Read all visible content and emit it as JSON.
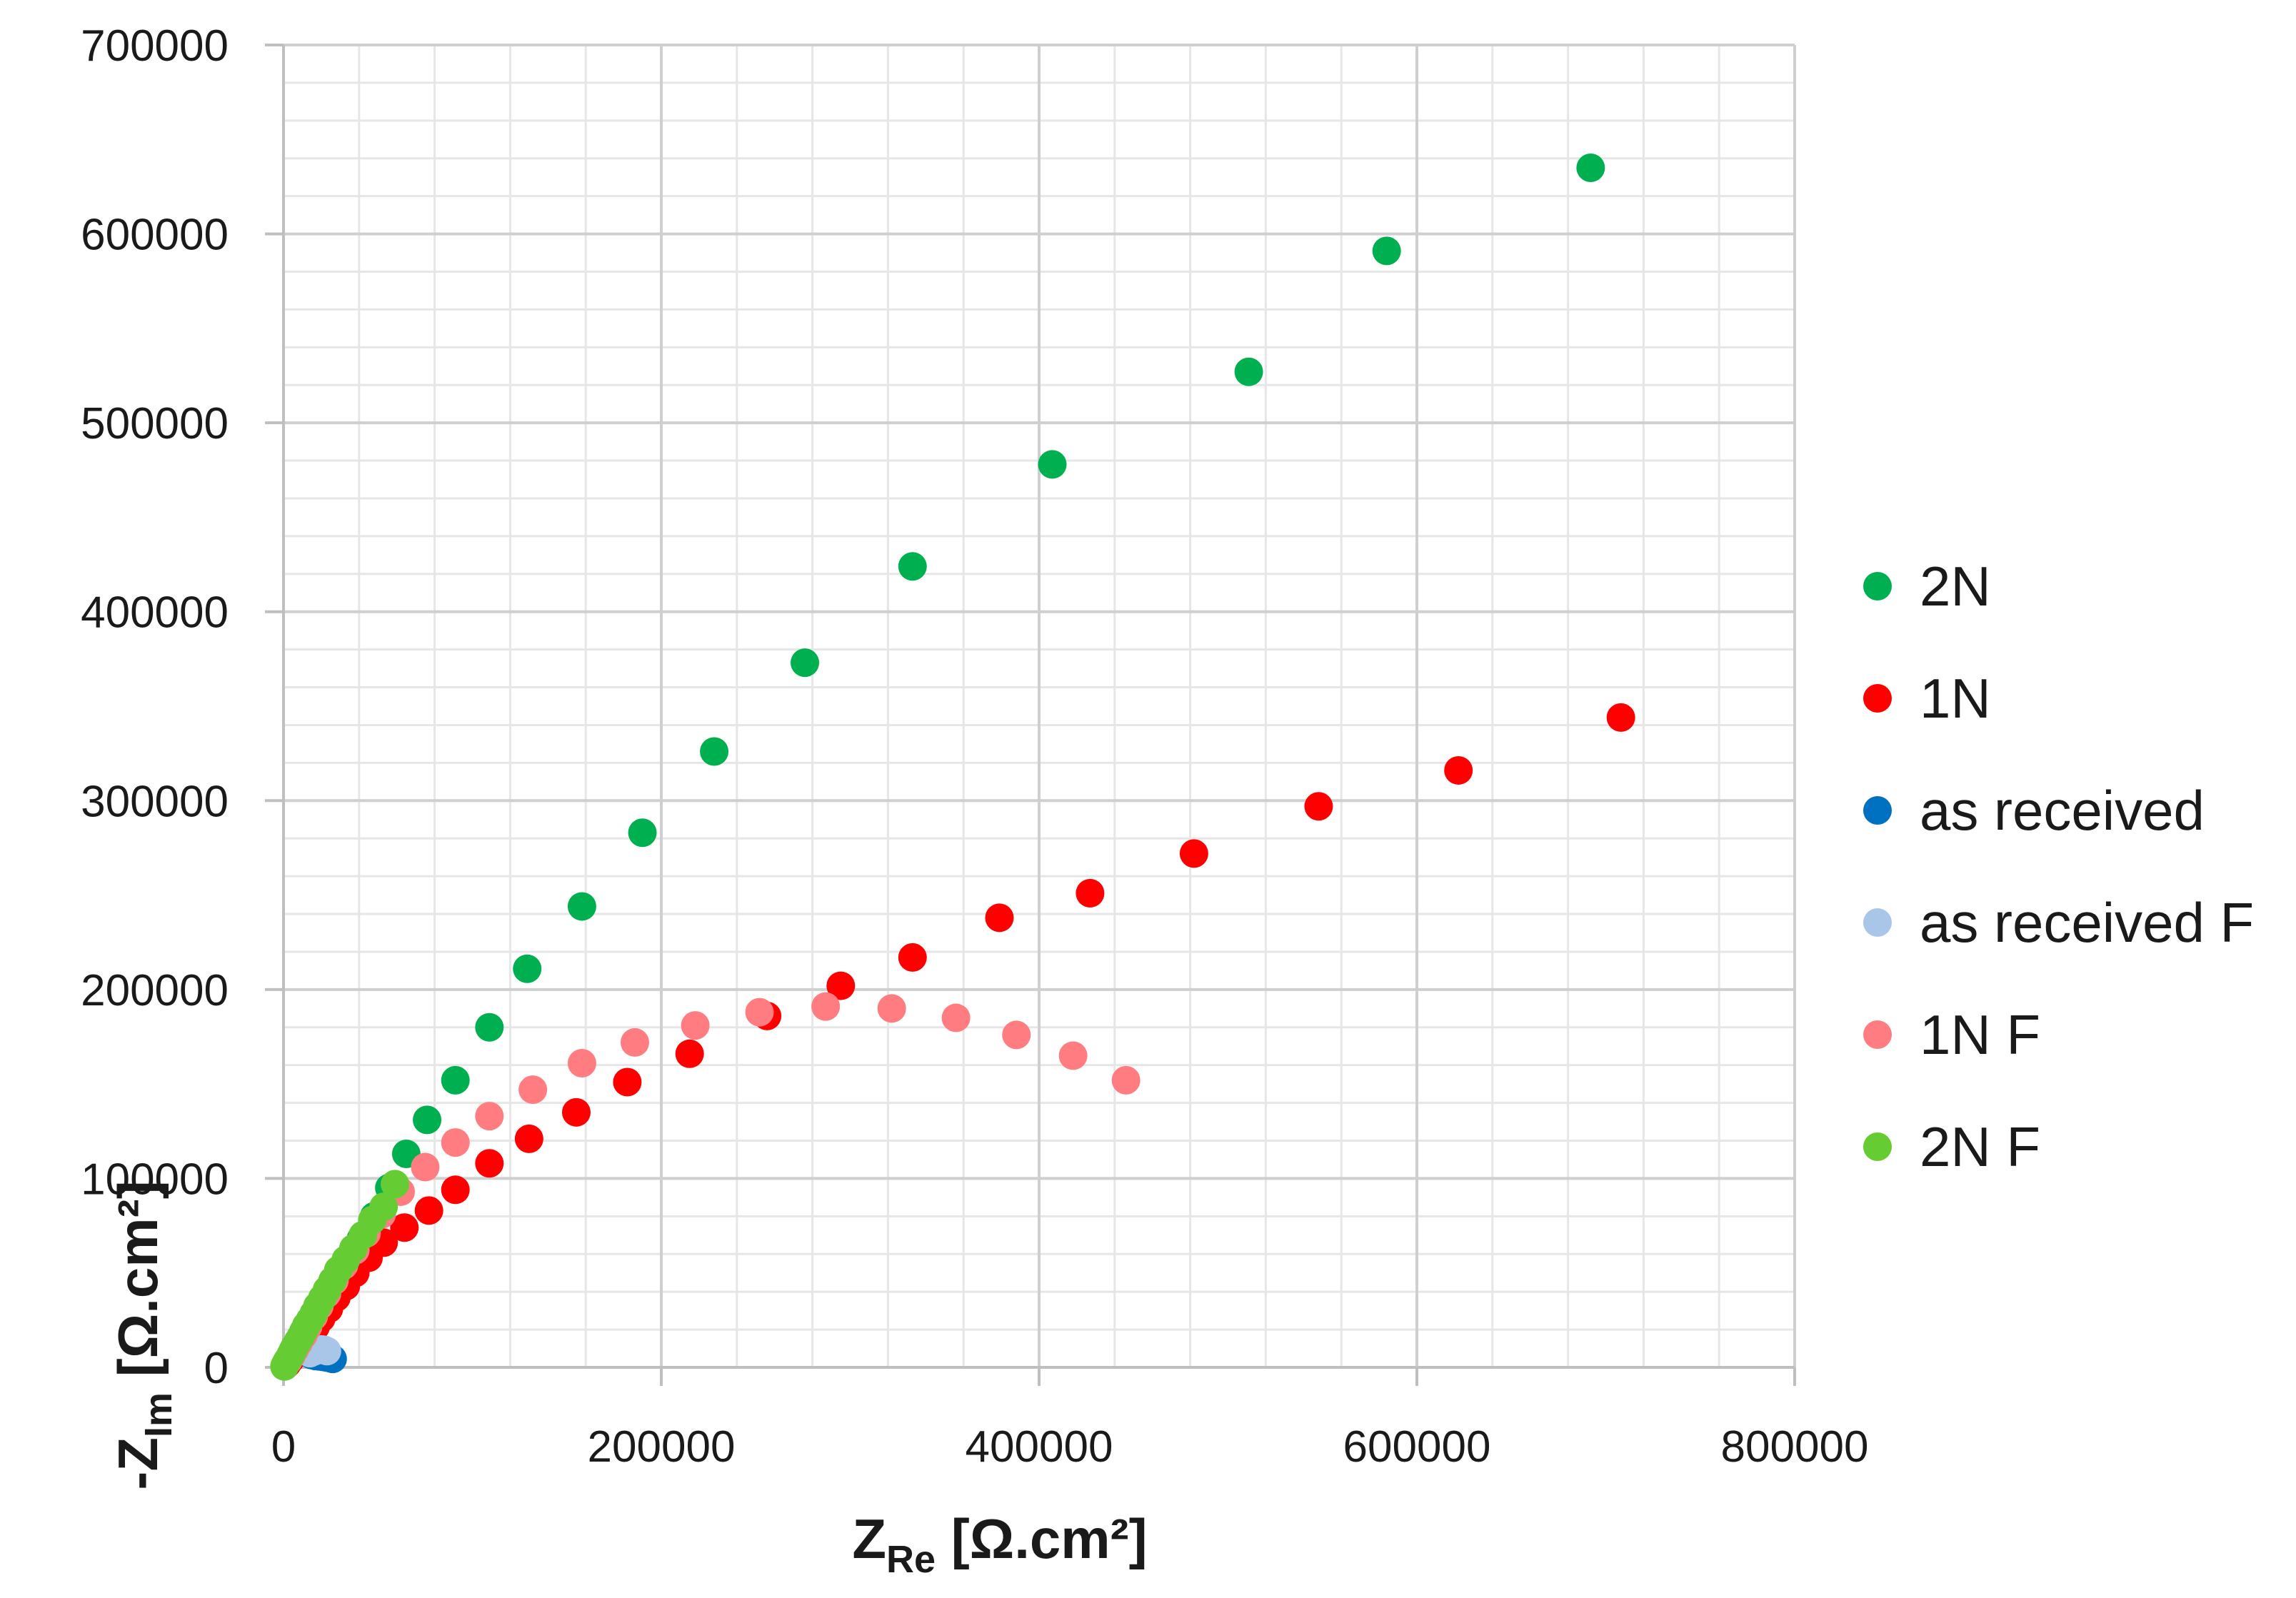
{
  "chart_data": {
    "type": "scatter",
    "title": "",
    "xlabel": {
      "main": "Z",
      "sub": "Re",
      "unit": " [Ω.cm²]"
    },
    "ylabel": {
      "main": "-Z",
      "sub": "Im",
      "unit": " [Ω.cm²]"
    },
    "xlim": [
      0,
      800000
    ],
    "ylim": [
      0,
      700000
    ],
    "x_ticks": [
      0,
      200000,
      400000,
      600000,
      800000
    ],
    "y_ticks": [
      0,
      100000,
      200000,
      300000,
      400000,
      500000,
      600000,
      700000
    ],
    "x_tick_labels": [
      "0",
      "200000",
      "400000",
      "600000",
      "800000"
    ],
    "y_tick_labels": [
      "0",
      "100000",
      "200000",
      "300000",
      "400000",
      "500000",
      "600000",
      "700000"
    ],
    "grid": {
      "major": true,
      "minor": true
    },
    "legend": {
      "position": "right"
    },
    "series": [
      {
        "name": "2N",
        "color": "#00b050",
        "points": [
          [
            1000,
            1500
          ],
          [
            2000,
            3000
          ],
          [
            3500,
            5000
          ],
          [
            5000,
            8000
          ],
          [
            7000,
            11000
          ],
          [
            9000,
            14000
          ],
          [
            11000,
            18000
          ],
          [
            13500,
            22000
          ],
          [
            16000,
            26500
          ],
          [
            19000,
            31500
          ],
          [
            22000,
            37000
          ],
          [
            26000,
            43000
          ],
          [
            30000,
            50000
          ],
          [
            35000,
            58000
          ],
          [
            41000,
            68000
          ],
          [
            48000,
            80000
          ],
          [
            56000,
            95000
          ],
          [
            65000,
            113000
          ],
          [
            76000,
            131000
          ],
          [
            91000,
            152000
          ],
          [
            109000,
            180000
          ],
          [
            129000,
            211000
          ],
          [
            158000,
            244000
          ],
          [
            190000,
            283000
          ],
          [
            228000,
            326000
          ],
          [
            276000,
            373000
          ],
          [
            333000,
            424000
          ],
          [
            407000,
            478000
          ],
          [
            511000,
            527000
          ],
          [
            584000,
            591000
          ],
          [
            692000,
            635000
          ]
        ]
      },
      {
        "name": "1N",
        "color": "#ff0000",
        "points": [
          [
            1000,
            1000
          ],
          [
            2000,
            2000
          ],
          [
            3500,
            4000
          ],
          [
            5000,
            6000
          ],
          [
            7000,
            8500
          ],
          [
            9000,
            11000
          ],
          [
            11500,
            14000
          ],
          [
            14000,
            17500
          ],
          [
            17000,
            21500
          ],
          [
            20000,
            26000
          ],
          [
            24000,
            31000
          ],
          [
            28000,
            37000
          ],
          [
            33000,
            43000
          ],
          [
            38000,
            50000
          ],
          [
            45000,
            58000
          ],
          [
            53000,
            66000
          ],
          [
            64000,
            74000
          ],
          [
            77000,
            83000
          ],
          [
            91000,
            94000
          ],
          [
            109000,
            108000
          ],
          [
            130000,
            121000
          ],
          [
            155000,
            135000
          ],
          [
            182000,
            151000
          ],
          [
            215000,
            166000
          ],
          [
            256000,
            186000
          ],
          [
            295000,
            202000
          ],
          [
            333000,
            217000
          ],
          [
            379000,
            238000
          ],
          [
            427000,
            251000
          ],
          [
            482000,
            272000
          ],
          [
            548000,
            297000
          ],
          [
            622000,
            316000
          ],
          [
            708000,
            344000
          ]
        ]
      },
      {
        "name": "as received",
        "color": "#0070c0",
        "points": [
          [
            15000,
            6500
          ],
          [
            17000,
            6000
          ],
          [
            19000,
            5800
          ],
          [
            21000,
            5500
          ],
          [
            23000,
            5200
          ],
          [
            25000,
            4800
          ],
          [
            26000,
            4500
          ]
        ]
      },
      {
        "name": "as received F",
        "color": "#a9c6e8",
        "points": [
          [
            14000,
            7500
          ],
          [
            15500,
            8200
          ],
          [
            17000,
            8800
          ],
          [
            18500,
            9200
          ],
          [
            20000,
            9500
          ],
          [
            21500,
            9300
          ],
          [
            23000,
            8600
          ]
        ]
      },
      {
        "name": "1N F",
        "color": "#ff7c80",
        "points": [
          [
            1000,
            1500
          ],
          [
            2500,
            3500
          ],
          [
            4000,
            6000
          ],
          [
            6000,
            9500
          ],
          [
            8000,
            13000
          ],
          [
            10500,
            17000
          ],
          [
            13000,
            21500
          ],
          [
            16000,
            27000
          ],
          [
            19000,
            32500
          ],
          [
            23000,
            39000
          ],
          [
            27000,
            46000
          ],
          [
            32000,
            54000
          ],
          [
            38000,
            62000
          ],
          [
            44000,
            71000
          ],
          [
            52000,
            81000
          ],
          [
            62000,
            93000
          ],
          [
            75000,
            106000
          ],
          [
            91000,
            119000
          ],
          [
            109000,
            133000
          ],
          [
            132000,
            147000
          ],
          [
            158000,
            161000
          ],
          [
            186000,
            172000
          ],
          [
            218000,
            181000
          ],
          [
            252000,
            188000
          ],
          [
            287000,
            191000
          ],
          [
            322000,
            190000
          ],
          [
            356000,
            185000
          ],
          [
            388000,
            176000
          ],
          [
            418000,
            165000
          ],
          [
            446000,
            152000
          ]
        ]
      },
      {
        "name": "2N F",
        "color": "#66cc33",
        "points": [
          [
            500,
            500
          ],
          [
            1000,
            1500
          ],
          [
            1500,
            2500
          ],
          [
            2000,
            3500
          ],
          [
            3000,
            5000
          ],
          [
            4000,
            7000
          ],
          [
            5000,
            9000
          ],
          [
            6000,
            11000
          ],
          [
            7500,
            13500
          ],
          [
            9000,
            16000
          ],
          [
            10500,
            19000
          ],
          [
            12000,
            22000
          ],
          [
            14000,
            25000
          ],
          [
            16000,
            28500
          ],
          [
            18000,
            32500
          ],
          [
            20500,
            36500
          ],
          [
            23000,
            41000
          ],
          [
            26000,
            46000
          ],
          [
            29000,
            51500
          ],
          [
            33000,
            57000
          ],
          [
            37000,
            63000
          ],
          [
            42000,
            70000
          ],
          [
            47000,
            78000
          ],
          [
            53000,
            85000
          ],
          [
            59000,
            97000
          ]
        ]
      }
    ]
  }
}
